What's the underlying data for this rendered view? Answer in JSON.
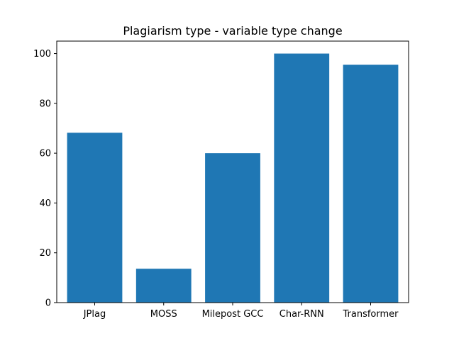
{
  "chart_data": {
    "type": "bar",
    "title": "Plagiarism type - variable type change",
    "xlabel": "",
    "ylabel": "",
    "categories": [
      "JPlag",
      "MOSS",
      "Milepost GCC",
      "Char-RNN",
      "Transformer"
    ],
    "values": [
      68.2,
      13.6,
      60.0,
      100.0,
      95.5
    ],
    "ylim": [
      0,
      105
    ],
    "yticks": [
      0,
      20,
      40,
      60,
      80,
      100
    ],
    "bar_color": "#1f77b4",
    "grid": false,
    "legend": "none"
  }
}
